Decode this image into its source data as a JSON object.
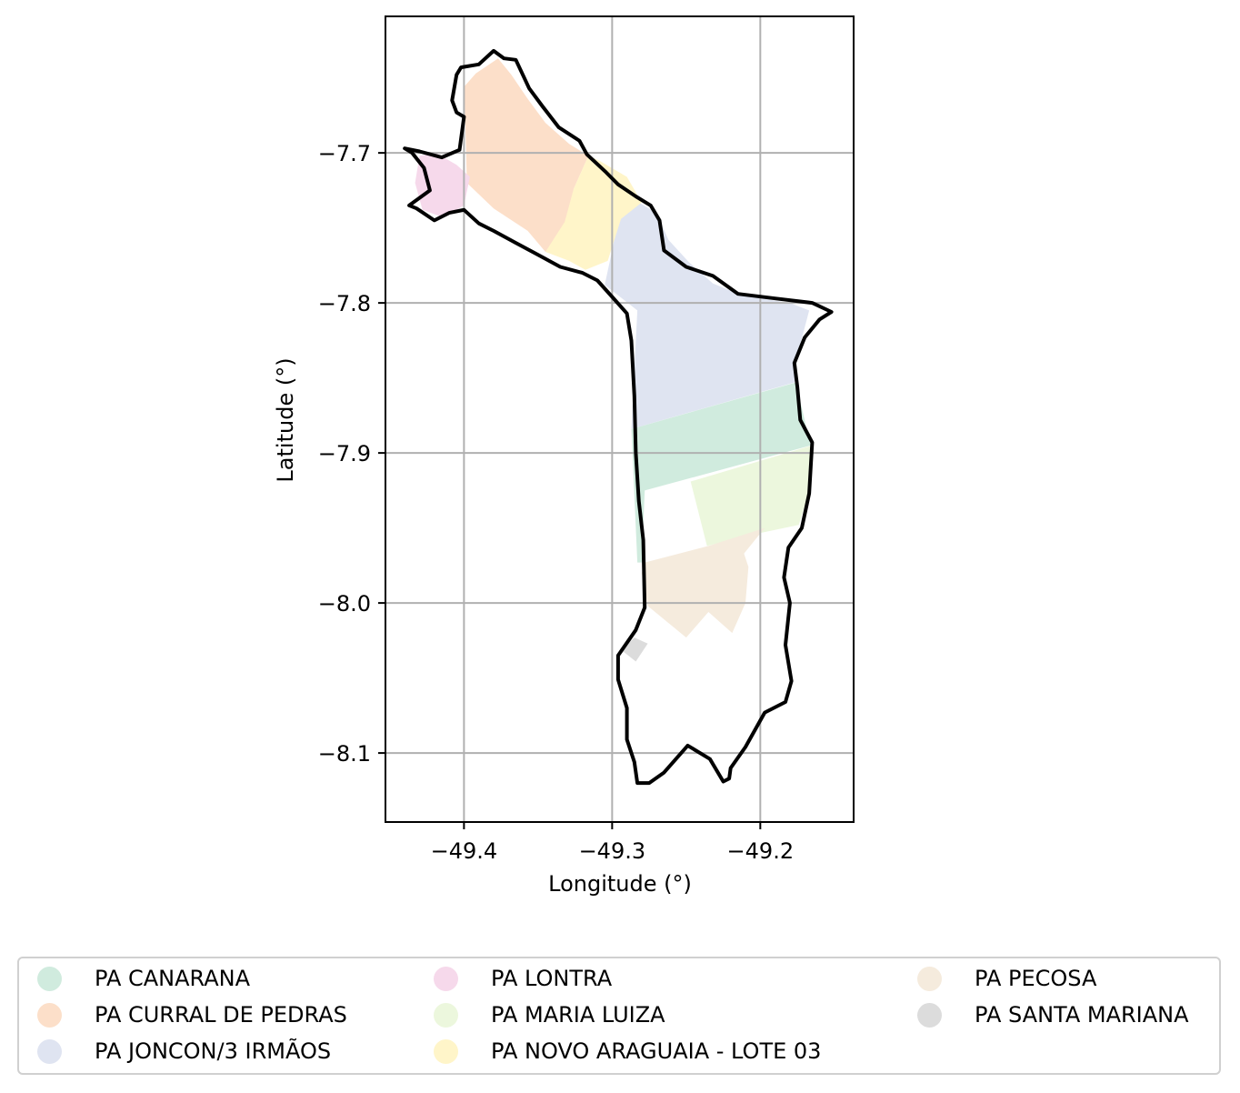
{
  "chart_data": {
    "type": "map",
    "title": "",
    "xlabel": "Longitude (°)",
    "ylabel": "Latitude (°)",
    "xlim": [
      -49.453,
      -49.137
    ],
    "ylim": [
      -8.146,
      -7.609
    ],
    "xticks": [
      -49.4,
      -49.3,
      -49.2
    ],
    "xtick_labels": [
      "−49.4",
      "−49.3",
      "−49.2"
    ],
    "yticks": [
      -7.7,
      -7.8,
      -7.9,
      -8.0,
      -8.1
    ],
    "ytick_labels": [
      "−7.7",
      "−7.8",
      "−7.9",
      "−8.0",
      "−8.1"
    ],
    "grid": true,
    "legend_position": "bottom",
    "regions": [
      {
        "name": "PA CANARANA",
        "color": "#d0ebde",
        "polygon": [
          [
            -49.287,
            -7.884
          ],
          [
            -49.176,
            -7.853
          ],
          [
            -49.166,
            -7.895
          ],
          [
            -49.278,
            -7.925
          ],
          [
            -49.28,
            -7.973
          ],
          [
            -49.283,
            -7.973
          ]
        ]
      },
      {
        "name": "PA CURRAL DE PEDRAS",
        "color": "#fcdfc9",
        "polygon": [
          [
            -49.398,
            -7.72
          ],
          [
            -49.399,
            -7.683
          ],
          [
            -49.4,
            -7.656
          ],
          [
            -49.392,
            -7.647
          ],
          [
            -49.377,
            -7.637
          ],
          [
            -49.368,
            -7.648
          ],
          [
            -49.357,
            -7.664
          ],
          [
            -49.345,
            -7.68
          ],
          [
            -49.329,
            -7.694
          ],
          [
            -49.316,
            -7.702
          ],
          [
            -49.326,
            -7.724
          ],
          [
            -49.33,
            -7.758
          ],
          [
            -49.345,
            -7.766
          ],
          [
            -49.357,
            -7.752
          ],
          [
            -49.38,
            -7.737
          ]
        ]
      },
      {
        "name": "PA JONCON/3 IRMÃOS",
        "color": "#dfe4f1",
        "polygon": [
          [
            -49.294,
            -7.733
          ],
          [
            -49.282,
            -7.733
          ],
          [
            -49.27,
            -7.74
          ],
          [
            -49.262,
            -7.758
          ],
          [
            -49.248,
            -7.773
          ],
          [
            -49.232,
            -7.787
          ],
          [
            -49.212,
            -7.795
          ],
          [
            -49.18,
            -7.8
          ],
          [
            -49.167,
            -7.805
          ],
          [
            -49.175,
            -7.835
          ],
          [
            -49.177,
            -7.853
          ],
          [
            -49.287,
            -7.884
          ],
          [
            -49.283,
            -7.805
          ],
          [
            -49.305,
            -7.788
          ],
          [
            -49.3,
            -7.765
          ]
        ]
      },
      {
        "name": "PA LONTRA",
        "color": "#f6d9eb",
        "polygon": [
          [
            -49.43,
            -7.702
          ],
          [
            -49.419,
            -7.7
          ],
          [
            -49.405,
            -7.708
          ],
          [
            -49.396,
            -7.716
          ],
          [
            -49.4,
            -7.735
          ],
          [
            -49.414,
            -7.743
          ],
          [
            -49.428,
            -7.738
          ],
          [
            -49.433,
            -7.72
          ]
        ]
      },
      {
        "name": "PA MARIA LUIZA",
        "color": "#ecf7dd",
        "polygon": [
          [
            -49.165,
            -7.895
          ],
          [
            -49.247,
            -7.919
          ],
          [
            -49.236,
            -7.962
          ],
          [
            -49.208,
            -7.955
          ],
          [
            -49.174,
            -7.948
          ],
          [
            -49.167,
            -7.925
          ]
        ]
      },
      {
        "name": "PA NOVO ARAGUAIA - LOTE 03",
        "color": "#fff5c9",
        "polygon": [
          [
            -49.316,
            -7.702
          ],
          [
            -49.309,
            -7.705
          ],
          [
            -49.29,
            -7.716
          ],
          [
            -49.28,
            -7.733
          ],
          [
            -49.294,
            -7.744
          ],
          [
            -49.303,
            -7.772
          ],
          [
            -49.318,
            -7.778
          ],
          [
            -49.329,
            -7.772
          ],
          [
            -49.345,
            -7.766
          ],
          [
            -49.332,
            -7.746
          ],
          [
            -49.326,
            -7.724
          ]
        ]
      },
      {
        "name": "PA PECOSA",
        "color": "#f5ebdd",
        "polygon": [
          [
            -49.278,
            -7.973
          ],
          [
            -49.235,
            -7.962
          ],
          [
            -49.197,
            -7.95
          ],
          [
            -49.211,
            -7.967
          ],
          [
            -49.208,
            -7.976
          ],
          [
            -49.21,
            -8.0
          ],
          [
            -49.219,
            -8.02
          ],
          [
            -49.235,
            -8.006
          ],
          [
            -49.25,
            -8.023
          ],
          [
            -49.276,
            -8.002
          ],
          [
            -49.28,
            -7.98
          ]
        ]
      },
      {
        "name": "PA SANTA MARIANA",
        "color": "#dcdcdc",
        "polygon": [
          [
            -49.29,
            -8.028
          ],
          [
            -49.285,
            -8.023
          ],
          [
            -49.276,
            -8.027
          ],
          [
            -49.284,
            -8.039
          ],
          [
            -49.293,
            -8.032
          ]
        ]
      }
    ],
    "outline": [
      [
        -49.38,
        -7.632
      ],
      [
        -49.373,
        -7.637
      ],
      [
        -49.365,
        -7.638
      ],
      [
        -49.356,
        -7.657
      ],
      [
        -49.347,
        -7.669
      ],
      [
        -49.336,
        -7.683
      ],
      [
        -49.322,
        -7.692
      ],
      [
        -49.317,
        -7.701
      ],
      [
        -49.304,
        -7.713
      ],
      [
        -49.296,
        -7.721
      ],
      [
        -49.284,
        -7.729
      ],
      [
        -49.274,
        -7.735
      ],
      [
        -49.268,
        -7.745
      ],
      [
        -49.265,
        -7.765
      ],
      [
        -49.25,
        -7.776
      ],
      [
        -49.232,
        -7.782
      ],
      [
        -49.215,
        -7.794
      ],
      [
        -49.19,
        -7.797
      ],
      [
        -49.165,
        -7.8
      ],
      [
        -49.152,
        -7.806
      ],
      [
        -49.16,
        -7.811
      ],
      [
        -49.17,
        -7.823
      ],
      [
        -49.177,
        -7.84
      ],
      [
        -49.175,
        -7.856
      ],
      [
        -49.173,
        -7.878
      ],
      [
        -49.165,
        -7.893
      ],
      [
        -49.167,
        -7.927
      ],
      [
        -49.172,
        -7.95
      ],
      [
        -49.181,
        -7.963
      ],
      [
        -49.184,
        -7.983
      ],
      [
        -49.18,
        -8.0
      ],
      [
        -49.183,
        -8.028
      ],
      [
        -49.179,
        -8.052
      ],
      [
        -49.183,
        -8.066
      ],
      [
        -49.197,
        -8.073
      ],
      [
        -49.21,
        -8.096
      ],
      [
        -49.22,
        -8.11
      ],
      [
        -49.221,
        -8.117
      ],
      [
        -49.225,
        -8.119
      ],
      [
        -49.234,
        -8.104
      ],
      [
        -49.249,
        -8.095
      ],
      [
        -49.265,
        -8.113
      ],
      [
        -49.275,
        -8.12
      ],
      [
        -49.283,
        -8.12
      ],
      [
        -49.285,
        -8.106
      ],
      [
        -49.29,
        -8.091
      ],
      [
        -49.29,
        -8.07
      ],
      [
        -49.296,
        -8.051
      ],
      [
        -49.296,
        -8.035
      ],
      [
        -49.284,
        -8.018
      ],
      [
        -49.278,
        -8.003
      ],
      [
        -49.279,
        -7.958
      ],
      [
        -49.282,
        -7.932
      ],
      [
        -49.284,
        -7.9
      ],
      [
        -49.285,
        -7.862
      ],
      [
        -49.287,
        -7.825
      ],
      [
        -49.29,
        -7.807
      ],
      [
        -49.3,
        -7.796
      ],
      [
        -49.31,
        -7.785
      ],
      [
        -49.32,
        -7.78
      ],
      [
        -49.335,
        -7.776
      ],
      [
        -49.35,
        -7.768
      ],
      [
        -49.365,
        -7.76
      ],
      [
        -49.38,
        -7.752
      ],
      [
        -49.39,
        -7.747
      ],
      [
        -49.4,
        -7.738
      ],
      [
        -49.41,
        -7.74
      ],
      [
        -49.42,
        -7.745
      ],
      [
        -49.432,
        -7.737
      ],
      [
        -49.437,
        -7.735
      ],
      [
        -49.423,
        -7.725
      ],
      [
        -49.427,
        -7.71
      ],
      [
        -49.435,
        -7.7
      ],
      [
        -49.44,
        -7.697
      ],
      [
        -49.43,
        -7.699
      ],
      [
        -49.415,
        -7.703
      ],
      [
        -49.403,
        -7.698
      ],
      [
        -49.4,
        -7.676
      ],
      [
        -49.405,
        -7.673
      ],
      [
        -49.408,
        -7.665
      ],
      [
        -49.405,
        -7.648
      ],
      [
        -49.402,
        -7.643
      ],
      [
        -49.39,
        -7.641
      ]
    ]
  },
  "legend": {
    "items": [
      {
        "label": "PA CANARANA",
        "color": "#d0ebde"
      },
      {
        "label": "PA CURRAL DE PEDRAS",
        "color": "#fcdfc9"
      },
      {
        "label": "PA JONCON/3 IRMÃOS",
        "color": "#dfe4f1"
      },
      {
        "label": "PA LONTRA",
        "color": "#f6d9eb"
      },
      {
        "label": "PA MARIA LUIZA",
        "color": "#ecf7dd"
      },
      {
        "label": "PA NOVO ARAGUAIA - LOTE 03",
        "color": "#fff5c9"
      },
      {
        "label": "PA PECOSA",
        "color": "#f5ebdd"
      },
      {
        "label": "PA SANTA MARIANA",
        "color": "#dcdcdc"
      }
    ]
  }
}
